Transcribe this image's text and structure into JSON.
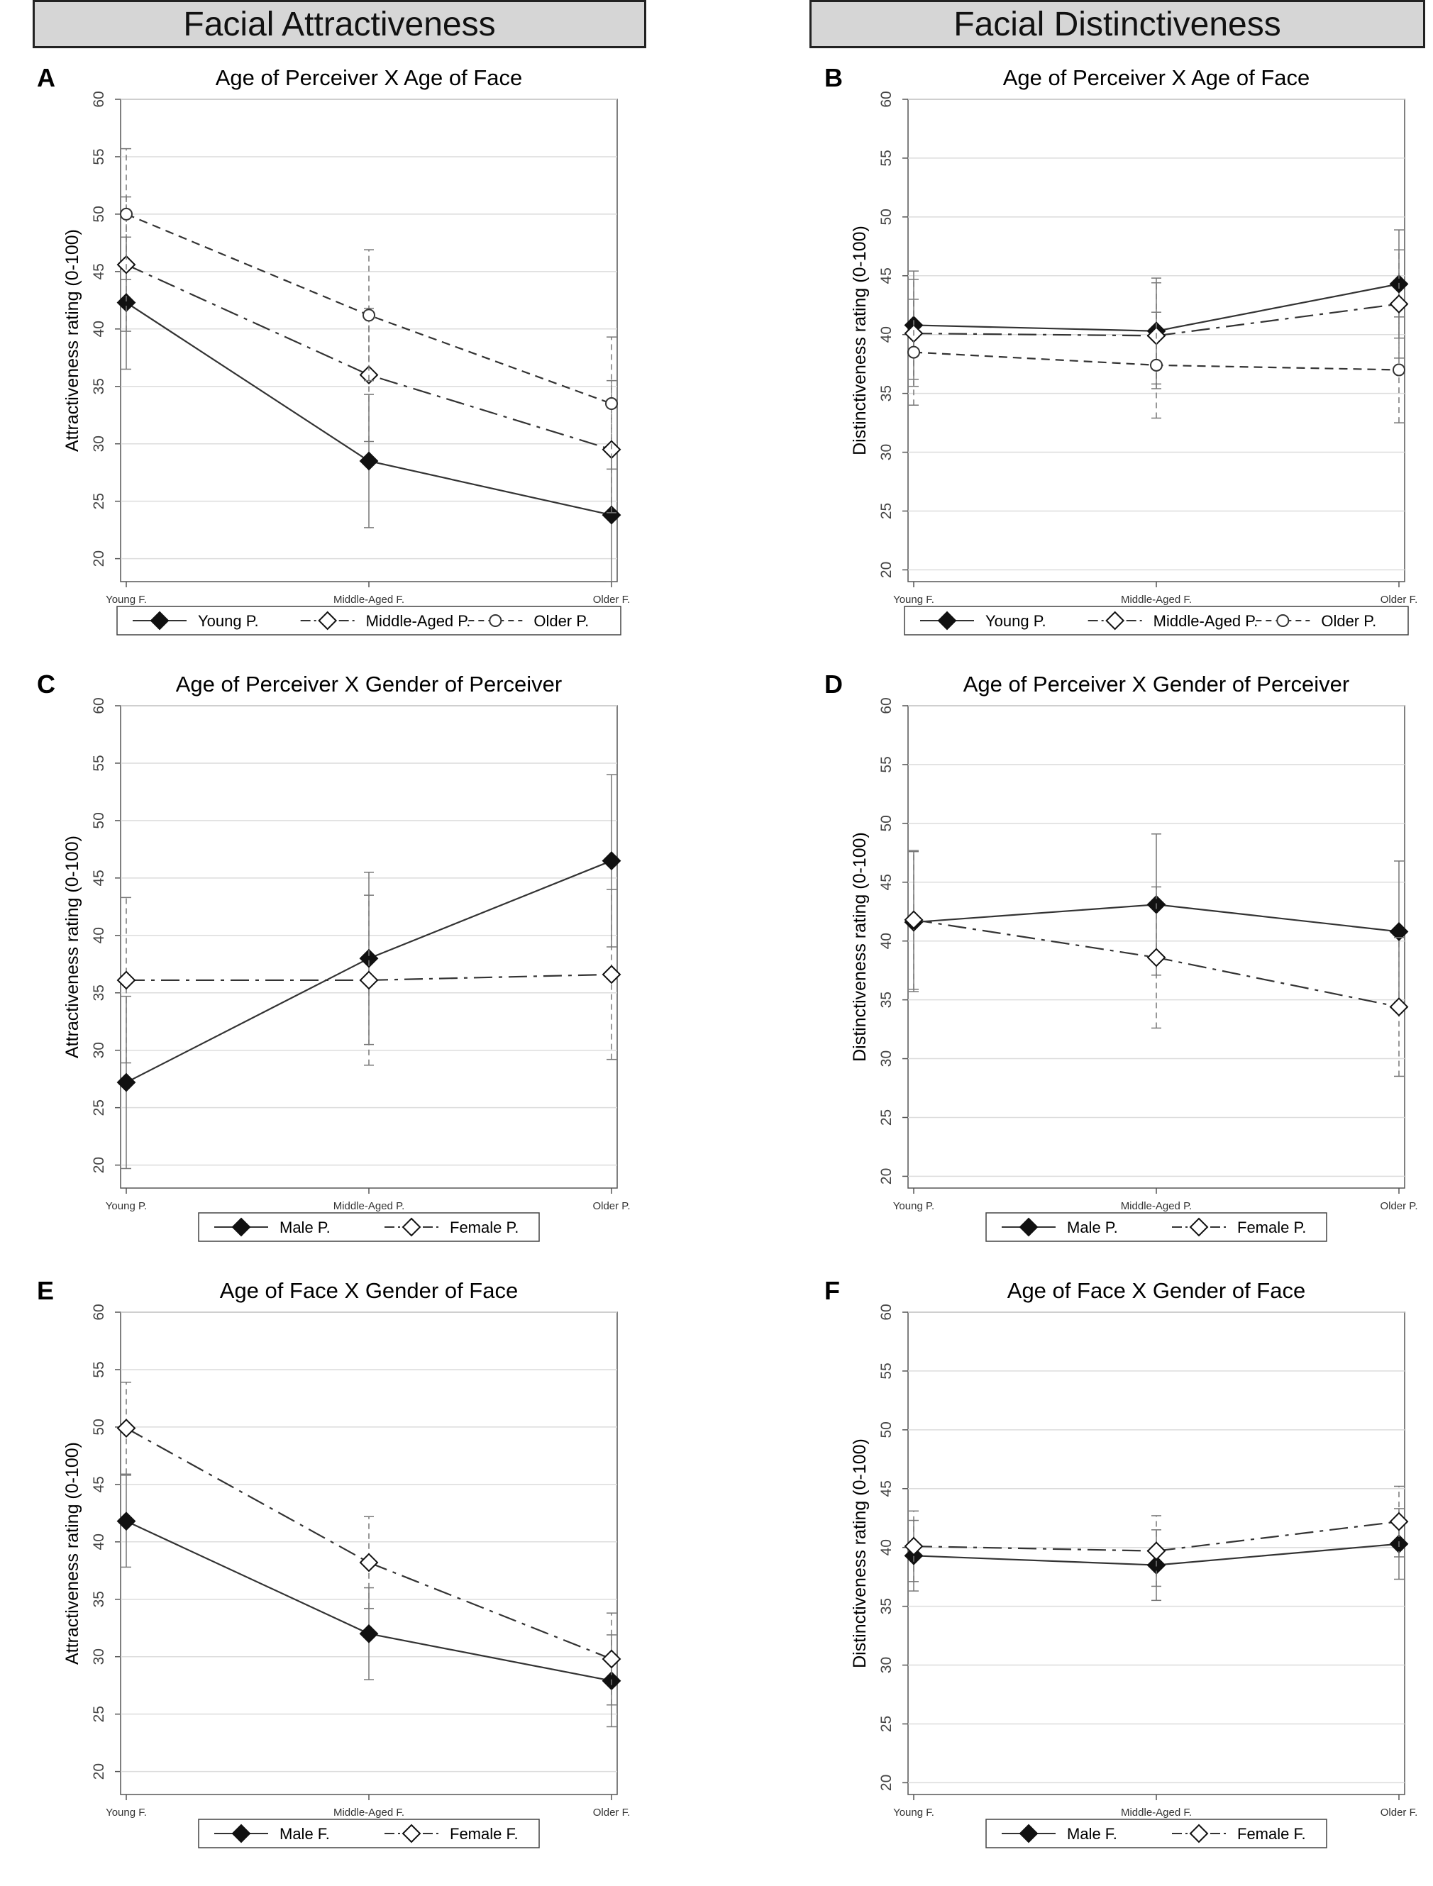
{
  "headers": {
    "left": "Facial Attractiveness",
    "right": "Facial Distinctiveness"
  },
  "chart_data": [
    {
      "id": "A",
      "letter": "A",
      "type": "line",
      "title": "Age of Perceiver X Age of Face",
      "ylabel": "Attractiveness rating (0-100)",
      "xlabel": "",
      "ylim": [
        18,
        60
      ],
      "yticks": [
        20,
        25,
        30,
        35,
        40,
        45,
        50,
        55,
        60
      ],
      "categories": [
        "Young F.",
        "Middle-Aged F.",
        "Older F."
      ],
      "series": [
        {
          "name": "Young P.",
          "style": "solid",
          "marker": "diamond-filled",
          "values": [
            42.3,
            28.5,
            23.8
          ],
          "ci": [
            [
              36.5,
              48.0
            ],
            [
              22.7,
              34.3
            ],
            [
              18.0,
              29.5
            ]
          ]
        },
        {
          "name": "Middle-Aged P.",
          "style": "longdashdot",
          "marker": "diamond-open",
          "values": [
            45.6,
            36.0,
            29.5
          ],
          "ci": [
            [
              39.8,
              51.5
            ],
            [
              30.2,
              41.8
            ],
            [
              24.0,
              35.5
            ]
          ]
        },
        {
          "name": "Older P.",
          "style": "dash",
          "marker": "circle-open",
          "values": [
            50.0,
            41.2,
            33.5
          ],
          "ci": [
            [
              44.3,
              55.7
            ],
            [
              35.5,
              46.9
            ],
            [
              27.8,
              39.3
            ]
          ]
        }
      ]
    },
    {
      "id": "B",
      "letter": "B",
      "type": "line",
      "title": "Age of Perceiver X Age of Face",
      "ylabel": "Distinctiveness rating (0-100)",
      "xlabel": "",
      "ylim": [
        19,
        60
      ],
      "yticks": [
        20,
        25,
        30,
        35,
        40,
        45,
        50,
        55,
        60
      ],
      "categories": [
        "Young F.",
        "Middle-Aged F.",
        "Older F."
      ],
      "series": [
        {
          "name": "Young P.",
          "style": "solid",
          "marker": "diamond-filled",
          "values": [
            40.8,
            40.3,
            44.3
          ],
          "ci": [
            [
              36.2,
              45.4
            ],
            [
              35.8,
              44.8
            ],
            [
              39.7,
              48.9
            ]
          ]
        },
        {
          "name": "Middle-Aged P.",
          "style": "longdashdot",
          "marker": "diamond-open",
          "values": [
            40.1,
            39.9,
            42.6
          ],
          "ci": [
            [
              35.6,
              44.7
            ],
            [
              35.4,
              44.4
            ],
            [
              38.0,
              47.2
            ]
          ]
        },
        {
          "name": "Older P.",
          "style": "dash",
          "marker": "circle-open",
          "values": [
            38.5,
            37.4,
            37.0
          ],
          "ci": [
            [
              34.0,
              43.0
            ],
            [
              32.9,
              41.9
            ],
            [
              32.5,
              41.5
            ]
          ]
        }
      ]
    },
    {
      "id": "C",
      "letter": "C",
      "type": "line",
      "title": "Age of Perceiver X Gender of Perceiver",
      "ylabel": "Attractiveness rating (0-100)",
      "xlabel": "",
      "ylim": [
        18,
        60
      ],
      "yticks": [
        20,
        25,
        30,
        35,
        40,
        45,
        50,
        55,
        60
      ],
      "categories": [
        "Young P.",
        "Middle-Aged P.",
        "Older P."
      ],
      "series": [
        {
          "name": "Male P.",
          "style": "solid",
          "marker": "diamond-filled",
          "values": [
            27.2,
            38.0,
            46.5
          ],
          "ci": [
            [
              19.7,
              34.7
            ],
            [
              30.5,
              45.5
            ],
            [
              39.0,
              54.0
            ]
          ]
        },
        {
          "name": "Female P.",
          "style": "longdashdot",
          "marker": "diamond-open",
          "values": [
            36.1,
            36.1,
            36.6
          ],
          "ci": [
            [
              28.9,
              43.3
            ],
            [
              28.7,
              43.5
            ],
            [
              29.2,
              44.0
            ]
          ]
        }
      ]
    },
    {
      "id": "D",
      "letter": "D",
      "type": "line",
      "title": "Age of Perceiver X Gender of Perceiver",
      "ylabel": "Distinctiveness rating (0-100)",
      "xlabel": "",
      "ylim": [
        19,
        60
      ],
      "yticks": [
        20,
        25,
        30,
        35,
        40,
        45,
        50,
        55,
        60
      ],
      "categories": [
        "Young P.",
        "Middle-Aged P.",
        "Older P."
      ],
      "series": [
        {
          "name": "Male P.",
          "style": "solid",
          "marker": "diamond-filled",
          "values": [
            41.6,
            43.1,
            40.8
          ],
          "ci": [
            [
              35.7,
              47.6
            ],
            [
              37.1,
              49.1
            ],
            [
              34.8,
              46.8
            ]
          ]
        },
        {
          "name": "Female P.",
          "style": "longdashdot",
          "marker": "diamond-open",
          "values": [
            41.8,
            38.6,
            34.4
          ],
          "ci": [
            [
              35.9,
              47.7
            ],
            [
              32.6,
              44.6
            ],
            [
              28.5,
              40.3
            ]
          ]
        }
      ]
    },
    {
      "id": "E",
      "letter": "E",
      "type": "line",
      "title": "Age of Face X Gender of Face",
      "ylabel": "Attractiveness rating (0-100)",
      "xlabel": "",
      "ylim": [
        18,
        60
      ],
      "yticks": [
        20,
        25,
        30,
        35,
        40,
        45,
        50,
        55,
        60
      ],
      "categories": [
        "Young F.",
        "Middle-Aged F.",
        "Older F."
      ],
      "series": [
        {
          "name": "Male F.",
          "style": "solid",
          "marker": "diamond-filled",
          "values": [
            41.8,
            32.0,
            27.9
          ],
          "ci": [
            [
              37.8,
              45.8
            ],
            [
              28.0,
              36.0
            ],
            [
              23.9,
              31.9
            ]
          ]
        },
        {
          "name": "Female F.",
          "style": "longdashdot",
          "marker": "diamond-open",
          "values": [
            49.9,
            38.2,
            29.8
          ],
          "ci": [
            [
              45.9,
              53.9
            ],
            [
              34.2,
              42.2
            ],
            [
              25.8,
              33.8
            ]
          ]
        }
      ]
    },
    {
      "id": "F",
      "letter": "F",
      "type": "line",
      "title": "Age of Face X Gender of Face",
      "ylabel": "Distinctiveness rating (0-100)",
      "xlabel": "",
      "ylim": [
        19,
        60
      ],
      "yticks": [
        20,
        25,
        30,
        35,
        40,
        45,
        50,
        55,
        60
      ],
      "categories": [
        "Young F.",
        "Middle-Aged F.",
        "Older F."
      ],
      "series": [
        {
          "name": "Male F.",
          "style": "solid",
          "marker": "diamond-filled",
          "values": [
            39.3,
            38.5,
            40.3
          ],
          "ci": [
            [
              36.3,
              42.3
            ],
            [
              35.5,
              41.5
            ],
            [
              37.3,
              43.3
            ]
          ]
        },
        {
          "name": "Female F.",
          "style": "longdashdot",
          "marker": "diamond-open",
          "values": [
            40.1,
            39.7,
            42.2
          ],
          "ci": [
            [
              37.1,
              43.1
            ],
            [
              36.7,
              42.7
            ],
            [
              39.2,
              45.2
            ]
          ]
        }
      ]
    }
  ]
}
